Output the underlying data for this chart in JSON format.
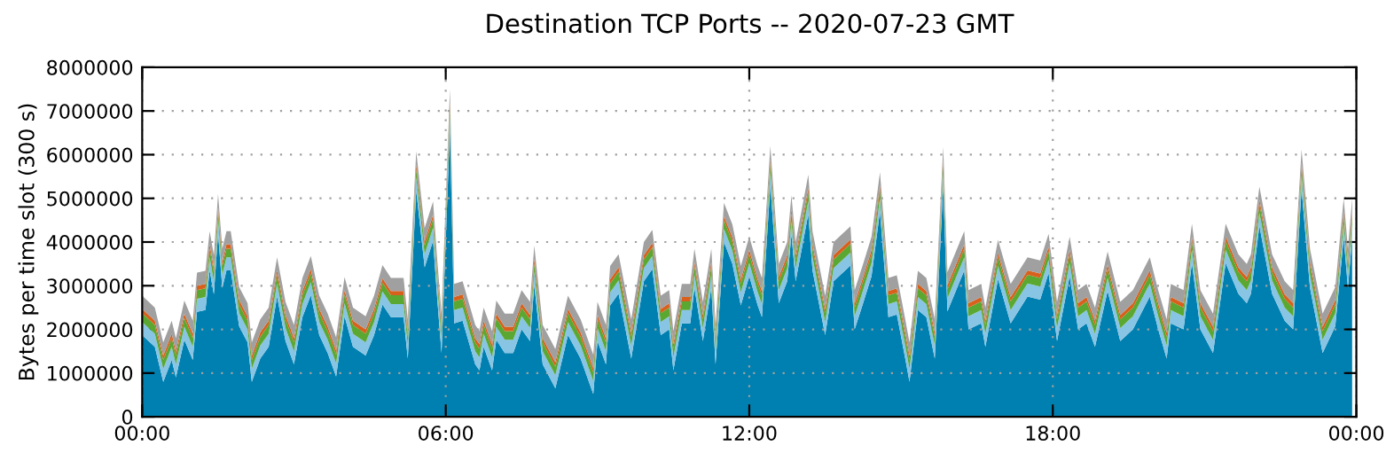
{
  "chart_data": {
    "type": "area",
    "stacked": true,
    "title": "Destination TCP Ports -- 2020-07-23 GMT",
    "ylabel": "Bytes per time slot (300 s)",
    "x": [
      "2020-07-23T00:00",
      "2020-07-23T00:15",
      "2020-07-23T00:25",
      "2020-07-23T00:35",
      "2020-07-23T00:40",
      "2020-07-23T00:50",
      "2020-07-23T01:00",
      "2020-07-23T01:05",
      "2020-07-23T01:15",
      "2020-07-23T01:20",
      "2020-07-23T01:25",
      "2020-07-23T01:30",
      "2020-07-23T01:35",
      "2020-07-23T01:40",
      "2020-07-23T01:45",
      "2020-07-23T01:55",
      "2020-07-23T02:05",
      "2020-07-23T02:10",
      "2020-07-23T02:20",
      "2020-07-23T02:30",
      "2020-07-23T02:40",
      "2020-07-23T02:50",
      "2020-07-23T03:00",
      "2020-07-23T03:10",
      "2020-07-23T03:20",
      "2020-07-23T03:30",
      "2020-07-23T03:40",
      "2020-07-23T03:50",
      "2020-07-23T04:00",
      "2020-07-23T04:10",
      "2020-07-23T04:25",
      "2020-07-23T04:35",
      "2020-07-23T04:45",
      "2020-07-23T04:55",
      "2020-07-23T05:10",
      "2020-07-23T05:15",
      "2020-07-23T05:25",
      "2020-07-23T05:35",
      "2020-07-23T05:45",
      "2020-07-23T05:50",
      "2020-07-23T05:55",
      "2020-07-23T06:05",
      "2020-07-23T06:10",
      "2020-07-23T06:20",
      "2020-07-23T06:35",
      "2020-07-23T06:40",
      "2020-07-23T06:45",
      "2020-07-23T06:55",
      "2020-07-23T07:00",
      "2020-07-23T07:10",
      "2020-07-23T07:20",
      "2020-07-23T07:30",
      "2020-07-23T07:40",
      "2020-07-23T07:45",
      "2020-07-23T07:55",
      "2020-07-23T08:10",
      "2020-07-23T08:25",
      "2020-07-23T08:40",
      "2020-07-23T08:55",
      "2020-07-23T09:00",
      "2020-07-23T09:10",
      "2020-07-23T09:15",
      "2020-07-23T09:25",
      "2020-07-23T09:40",
      "2020-07-23T09:55",
      "2020-07-23T10:05",
      "2020-07-23T10:15",
      "2020-07-23T10:25",
      "2020-07-23T10:30",
      "2020-07-23T10:40",
      "2020-07-23T10:50",
      "2020-07-23T10:55",
      "2020-07-23T11:05",
      "2020-07-23T11:15",
      "2020-07-23T11:20",
      "2020-07-23T11:30",
      "2020-07-23T11:40",
      "2020-07-23T11:50",
      "2020-07-23T12:00",
      "2020-07-23T12:10",
      "2020-07-23T12:15",
      "2020-07-23T12:25",
      "2020-07-23T12:35",
      "2020-07-23T12:45",
      "2020-07-23T12:50",
      "2020-07-23T12:55",
      "2020-07-23T13:10",
      "2020-07-23T13:15",
      "2020-07-23T13:30",
      "2020-07-23T13:40",
      "2020-07-23T14:00",
      "2020-07-23T14:05",
      "2020-07-23T14:15",
      "2020-07-23T14:25",
      "2020-07-23T14:35",
      "2020-07-23T14:45",
      "2020-07-23T14:55",
      "2020-07-23T15:05",
      "2020-07-23T15:10",
      "2020-07-23T15:20",
      "2020-07-23T15:30",
      "2020-07-23T15:40",
      "2020-07-23T15:50",
      "2020-07-23T15:55",
      "2020-07-23T16:15",
      "2020-07-23T16:20",
      "2020-07-23T16:35",
      "2020-07-23T16:40",
      "2020-07-23T16:55",
      "2020-07-23T17:10",
      "2020-07-23T17:30",
      "2020-07-23T17:45",
      "2020-07-23T17:55",
      "2020-07-23T18:05",
      "2020-07-23T18:20",
      "2020-07-23T18:30",
      "2020-07-23T18:40",
      "2020-07-23T18:50",
      "2020-07-23T19:05",
      "2020-07-23T19:20",
      "2020-07-23T19:35",
      "2020-07-23T19:55",
      "2020-07-23T20:05",
      "2020-07-23T20:15",
      "2020-07-23T20:20",
      "2020-07-23T20:35",
      "2020-07-23T20:45",
      "2020-07-23T20:55",
      "2020-07-23T21:10",
      "2020-07-23T21:25",
      "2020-07-23T21:40",
      "2020-07-23T21:50",
      "2020-07-23T21:55",
      "2020-07-23T22:05",
      "2020-07-23T22:20",
      "2020-07-23T22:35",
      "2020-07-23T22:45",
      "2020-07-23T22:55",
      "2020-07-23T23:05",
      "2020-07-23T23:20",
      "2020-07-23T23:35",
      "2020-07-23T23:45",
      "2020-07-23T23:50",
      "2020-07-23T23:55"
    ],
    "series": [
      {
        "color": "#0080b0",
        "values": [
          1870000.0,
          1600000.0,
          800000.0,
          1300000.0,
          900000.0,
          1760000.0,
          1300000.0,
          2400000.0,
          2440000.0,
          3350000.0,
          2800000.0,
          4200000.0,
          2950000.0,
          3350000.0,
          3350000.0,
          2070000.0,
          1700000.0,
          800000.0,
          1330000.0,
          1600000.0,
          2750000.0,
          1730000.0,
          1200000.0,
          2280000.0,
          2780000.0,
          1870000.0,
          1460000.0,
          920000.0,
          2300000.0,
          1600000.0,
          1400000.0,
          1870000.0,
          2570000.0,
          2280000.0,
          2280000.0,
          1330000.0,
          5180000.0,
          3420000.0,
          4030000.0,
          2680000.0,
          1460000.0,
          6600000.0,
          2140000.0,
          2200000.0,
          1200000.0,
          1060000.0,
          1600000.0,
          1060000.0,
          1760000.0,
          1460000.0,
          1460000.0,
          2000000.0,
          1730000.0,
          3020000.0,
          1200000.0,
          650000.0,
          1870000.0,
          1330000.0,
          520000.0,
          1730000.0,
          1200000.0,
          2550000.0,
          2820000.0,
          1330000.0,
          3100000.0,
          3380000.0,
          1870000.0,
          2000000.0,
          1060000.0,
          2140000.0,
          2140000.0,
          2950000.0,
          1730000.0,
          2950000.0,
          1200000.0,
          4000000.0,
          3500000.0,
          2550000.0,
          3220000.0,
          2550000.0,
          2280000.0,
          5300000.0,
          2600000.0,
          3100000.0,
          4170000.0,
          3100000.0,
          4640000.0,
          3350000.0,
          1870000.0,
          3100000.0,
          3460000.0,
          2000000.0,
          2600000.0,
          3220000.0,
          4700000.0,
          2280000.0,
          2340000.0,
          1330000.0,
          800000.0,
          2440000.0,
          2280000.0,
          1330000.0,
          5280000.0,
          2410000.0,
          3350000.0,
          2000000.0,
          2140000.0,
          1600000.0,
          3150000.0,
          2140000.0,
          2750000.0,
          2680000.0,
          3290000.0,
          1730000.0,
          3220000.0,
          2000000.0,
          2140000.0,
          1600000.0,
          2880000.0,
          1730000.0,
          2000000.0,
          2750000.0,
          2000000.0,
          1330000.0,
          2140000.0,
          2000000.0,
          3520000.0,
          2000000.0,
          1460000.0,
          3520000.0,
          2820000.0,
          2600000.0,
          2820000.0,
          4370000.0,
          2820000.0,
          2200000.0,
          2000000.0,
          5220000.0,
          2950000.0,
          1460000.0,
          2070000.0,
          4100000.0,
          2950000.0,
          4100000.0
        ]
      },
      {
        "color": "#88c4e4",
        "values": [
          300000.0,
          300000.0,
          300000.0,
          300000.0,
          300000.0,
          300000.0,
          300000.0,
          300000.0,
          300000.0,
          300000.0,
          300000.0,
          300000.0,
          300000.0,
          300000.0,
          300000.0,
          300000.0,
          300000.0,
          300000.0,
          300000.0,
          300000.0,
          300000.0,
          300000.0,
          300000.0,
          300000.0,
          300000.0,
          300000.0,
          300000.0,
          300000.0,
          300000.0,
          300000.0,
          300000.0,
          300000.0,
          300000.0,
          300000.0,
          300000.0,
          300000.0,
          300000.0,
          300000.0,
          300000.0,
          300000.0,
          300000.0,
          300000.0,
          300000.0,
          300000.0,
          300000.0,
          300000.0,
          300000.0,
          300000.0,
          300000.0,
          300000.0,
          300000.0,
          300000.0,
          300000.0,
          300000.0,
          300000.0,
          300000.0,
          300000.0,
          300000.0,
          300000.0,
          300000.0,
          300000.0,
          300000.0,
          300000.0,
          300000.0,
          300000.0,
          300000.0,
          300000.0,
          300000.0,
          300000.0,
          300000.0,
          300000.0,
          300000.0,
          300000.0,
          300000.0,
          300000.0,
          300000.0,
          300000.0,
          300000.0,
          300000.0,
          300000.0,
          300000.0,
          300000.0,
          300000.0,
          300000.0,
          300000.0,
          300000.0,
          300000.0,
          300000.0,
          300000.0,
          300000.0,
          300000.0,
          300000.0,
          300000.0,
          300000.0,
          300000.0,
          300000.0,
          300000.0,
          300000.0,
          300000.0,
          300000.0,
          300000.0,
          300000.0,
          300000.0,
          300000.0,
          300000.0,
          300000.0,
          300000.0,
          300000.0,
          300000.0,
          300000.0,
          300000.0,
          300000.0,
          300000.0,
          300000.0,
          300000.0,
          300000.0,
          300000.0,
          300000.0,
          300000.0,
          300000.0,
          300000.0,
          300000.0,
          300000.0,
          300000.0,
          300000.0,
          300000.0,
          300000.0,
          300000.0,
          300000.0,
          300000.0,
          300000.0,
          300000.0,
          300000.0,
          300000.0,
          300000.0,
          300000.0,
          300000.0,
          300000.0,
          300000.0,
          300000.0,
          300000.0,
          300000.0,
          300000.0,
          300000.0
        ]
      },
      {
        "color": "#5aa832",
        "values": [
          200000.0,
          200000.0,
          200000.0,
          200000.0,
          200000.0,
          200000.0,
          200000.0,
          200000.0,
          200000.0,
          200000.0,
          200000.0,
          200000.0,
          200000.0,
          200000.0,
          200000.0,
          200000.0,
          200000.0,
          200000.0,
          200000.0,
          200000.0,
          200000.0,
          200000.0,
          200000.0,
          200000.0,
          200000.0,
          200000.0,
          200000.0,
          200000.0,
          200000.0,
          200000.0,
          200000.0,
          200000.0,
          200000.0,
          200000.0,
          200000.0,
          200000.0,
          200000.0,
          200000.0,
          200000.0,
          200000.0,
          200000.0,
          200000.0,
          200000.0,
          200000.0,
          200000.0,
          200000.0,
          200000.0,
          200000.0,
          200000.0,
          200000.0,
          200000.0,
          200000.0,
          200000.0,
          200000.0,
          200000.0,
          200000.0,
          200000.0,
          200000.0,
          200000.0,
          200000.0,
          200000.0,
          200000.0,
          200000.0,
          200000.0,
          200000.0,
          200000.0,
          200000.0,
          200000.0,
          200000.0,
          200000.0,
          200000.0,
          200000.0,
          200000.0,
          200000.0,
          200000.0,
          200000.0,
          200000.0,
          200000.0,
          200000.0,
          200000.0,
          200000.0,
          200000.0,
          200000.0,
          200000.0,
          200000.0,
          200000.0,
          200000.0,
          200000.0,
          200000.0,
          200000.0,
          200000.0,
          200000.0,
          200000.0,
          200000.0,
          200000.0,
          200000.0,
          200000.0,
          200000.0,
          200000.0,
          200000.0,
          200000.0,
          200000.0,
          200000.0,
          200000.0,
          200000.0,
          200000.0,
          200000.0,
          200000.0,
          200000.0,
          200000.0,
          200000.0,
          200000.0,
          200000.0,
          200000.0,
          200000.0,
          200000.0,
          200000.0,
          200000.0,
          200000.0,
          200000.0,
          200000.0,
          200000.0,
          200000.0,
          200000.0,
          200000.0,
          200000.0,
          200000.0,
          200000.0,
          200000.0,
          200000.0,
          200000.0,
          200000.0,
          200000.0,
          200000.0,
          200000.0,
          200000.0,
          200000.0,
          200000.0,
          200000.0,
          200000.0,
          200000.0,
          200000.0,
          200000.0,
          200000.0
        ]
      },
      {
        "color": "#d8601c",
        "values": [
          100000.0,
          100000.0,
          100000.0,
          100000.0,
          100000.0,
          100000.0,
          100000.0,
          100000.0,
          100000.0,
          100000.0,
          100000.0,
          100000.0,
          100000.0,
          100000.0,
          100000.0,
          100000.0,
          100000.0,
          100000.0,
          100000.0,
          100000.0,
          100000.0,
          100000.0,
          100000.0,
          100000.0,
          100000.0,
          100000.0,
          100000.0,
          100000.0,
          100000.0,
          100000.0,
          100000.0,
          100000.0,
          100000.0,
          100000.0,
          100000.0,
          100000.0,
          100000.0,
          100000.0,
          100000.0,
          100000.0,
          100000.0,
          100000.0,
          100000.0,
          100000.0,
          100000.0,
          100000.0,
          100000.0,
          100000.0,
          100000.0,
          100000.0,
          100000.0,
          100000.0,
          100000.0,
          100000.0,
          100000.0,
          100000.0,
          100000.0,
          100000.0,
          100000.0,
          100000.0,
          100000.0,
          100000.0,
          100000.0,
          100000.0,
          100000.0,
          100000.0,
          100000.0,
          100000.0,
          100000.0,
          100000.0,
          100000.0,
          100000.0,
          100000.0,
          100000.0,
          100000.0,
          100000.0,
          100000.0,
          100000.0,
          100000.0,
          100000.0,
          100000.0,
          100000.0,
          100000.0,
          100000.0,
          100000.0,
          100000.0,
          100000.0,
          100000.0,
          100000.0,
          100000.0,
          100000.0,
          100000.0,
          100000.0,
          100000.0,
          100000.0,
          100000.0,
          100000.0,
          100000.0,
          100000.0,
          100000.0,
          100000.0,
          100000.0,
          100000.0,
          100000.0,
          100000.0,
          100000.0,
          100000.0,
          100000.0,
          100000.0,
          100000.0,
          100000.0,
          100000.0,
          100000.0,
          100000.0,
          100000.0,
          100000.0,
          100000.0,
          100000.0,
          100000.0,
          100000.0,
          100000.0,
          100000.0,
          100000.0,
          100000.0,
          100000.0,
          100000.0,
          100000.0,
          100000.0,
          100000.0,
          100000.0,
          100000.0,
          100000.0,
          100000.0,
          100000.0,
          100000.0,
          100000.0,
          100000.0,
          100000.0,
          100000.0,
          100000.0,
          100000.0,
          100000.0,
          100000.0,
          100000.0
        ]
      },
      {
        "color": "#a0a0a0",
        "values": [
          300000.0,
          300000.0,
          300000.0,
          300000.0,
          300000.0,
          300000.0,
          300000.0,
          300000.0,
          300000.0,
          300000.0,
          300000.0,
          300000.0,
          300000.0,
          300000.0,
          300000.0,
          300000.0,
          300000.0,
          300000.0,
          300000.0,
          300000.0,
          300000.0,
          300000.0,
          300000.0,
          300000.0,
          300000.0,
          300000.0,
          300000.0,
          300000.0,
          300000.0,
          300000.0,
          300000.0,
          300000.0,
          300000.0,
          300000.0,
          300000.0,
          300000.0,
          300000.0,
          300000.0,
          300000.0,
          300000.0,
          300000.0,
          300000.0,
          300000.0,
          300000.0,
          300000.0,
          300000.0,
          300000.0,
          300000.0,
          300000.0,
          300000.0,
          300000.0,
          300000.0,
          300000.0,
          300000.0,
          300000.0,
          300000.0,
          300000.0,
          300000.0,
          300000.0,
          300000.0,
          300000.0,
          300000.0,
          300000.0,
          300000.0,
          300000.0,
          300000.0,
          300000.0,
          300000.0,
          300000.0,
          300000.0,
          300000.0,
          300000.0,
          300000.0,
          300000.0,
          300000.0,
          300000.0,
          300000.0,
          300000.0,
          300000.0,
          300000.0,
          300000.0,
          300000.0,
          300000.0,
          300000.0,
          300000.0,
          300000.0,
          300000.0,
          300000.0,
          300000.0,
          300000.0,
          300000.0,
          300000.0,
          300000.0,
          300000.0,
          300000.0,
          300000.0,
          300000.0,
          300000.0,
          300000.0,
          300000.0,
          300000.0,
          300000.0,
          300000.0,
          300000.0,
          300000.0,
          300000.0,
          300000.0,
          300000.0,
          300000.0,
          300000.0,
          300000.0,
          300000.0,
          300000.0,
          300000.0,
          300000.0,
          300000.0,
          300000.0,
          300000.0,
          300000.0,
          300000.0,
          300000.0,
          300000.0,
          300000.0,
          300000.0,
          300000.0,
          300000.0,
          300000.0,
          300000.0,
          300000.0,
          300000.0,
          300000.0,
          300000.0,
          300000.0,
          300000.0,
          300000.0,
          300000.0,
          300000.0,
          300000.0,
          300000.0,
          300000.0,
          300000.0,
          300000.0,
          300000.0,
          300000.0
        ]
      }
    ],
    "xlim": [
      "2020-07-23T00:00",
      "2020-07-24T00:00"
    ],
    "xticks": [
      {
        "value": "2020-07-23T00:00",
        "label": "00:00"
      },
      {
        "value": "2020-07-23T06:00",
        "label": "06:00"
      },
      {
        "value": "2020-07-23T12:00",
        "label": "12:00"
      },
      {
        "value": "2020-07-23T18:00",
        "label": "18:00"
      },
      {
        "value": "2020-07-24T00:00",
        "label": "00:00"
      }
    ],
    "ylim": [
      0,
      8000000
    ],
    "yticks": [
      0,
      1000000,
      2000000,
      3000000,
      4000000,
      5000000,
      6000000,
      7000000,
      8000000
    ],
    "grid": true
  }
}
